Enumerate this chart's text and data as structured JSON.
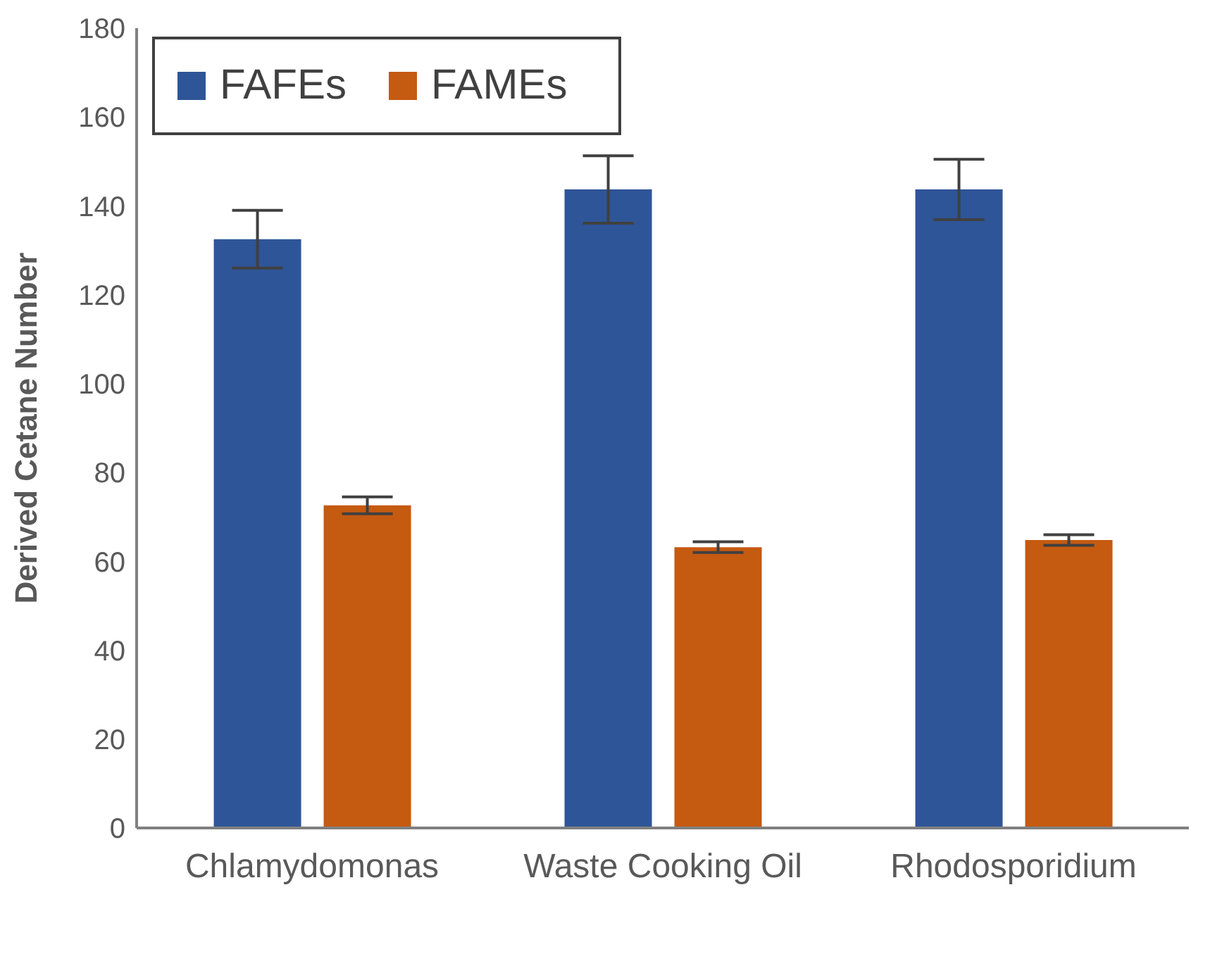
{
  "chart_data": {
    "type": "bar",
    "ylabel": "Derived Cetane Number",
    "categories": [
      "Chlamydomonas",
      "Waste Cooking Oil",
      "Rhodosporidium"
    ],
    "series": [
      {
        "name": "FAFEs",
        "color": "#2e5597",
        "values": [
          132.5,
          143.7,
          143.7
        ],
        "errors": [
          6.5,
          7.6,
          6.8
        ]
      },
      {
        "name": "FAMEs",
        "color": "#c55a11",
        "values": [
          72.6,
          63.2,
          64.8
        ],
        "errors": [
          1.9,
          1.2,
          1.2
        ]
      }
    ],
    "ylim": [
      0,
      180
    ],
    "yticks": [
      0,
      20,
      40,
      60,
      80,
      100,
      120,
      140,
      160,
      180
    ],
    "grid": false,
    "legend": "top left"
  }
}
